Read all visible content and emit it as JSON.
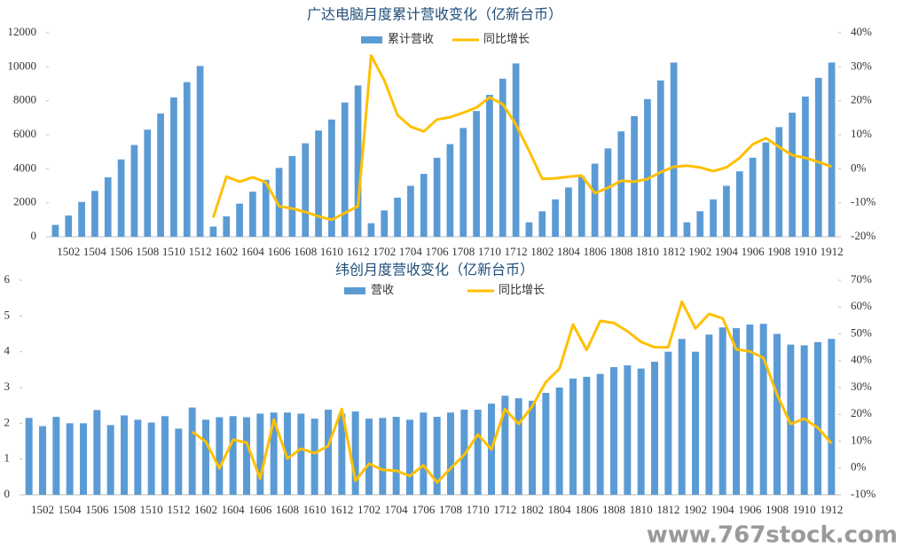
{
  "chart_data": [
    {
      "type": "bar",
      "title": "广达电脑月度累计营收变化（亿新台币）",
      "categories": [
        null,
        "1502",
        null,
        "1504",
        null,
        "1506",
        null,
        "1508",
        null,
        "1510",
        null,
        "1512",
        null,
        "1602",
        null,
        "1604",
        null,
        "1606",
        null,
        "1608",
        null,
        "1610",
        null,
        "1612",
        null,
        "1702",
        null,
        "1704",
        null,
        "1706",
        null,
        "1708",
        null,
        "1710",
        null,
        "1712",
        null,
        "1802",
        null,
        "1804",
        null,
        "1806",
        null,
        "1808",
        null,
        "1810",
        null,
        "1812",
        null,
        "1902",
        null,
        "1904",
        null,
        "1906",
        null,
        "1908",
        null,
        "1910",
        null,
        "1912"
      ],
      "series": [
        {
          "name": "累计营收",
          "type": "bar",
          "color": "#5b9bd5",
          "values": [
            700,
            1250,
            2050,
            2700,
            3500,
            4550,
            5400,
            6300,
            7250,
            8200,
            9100,
            10050,
            600,
            1200,
            1950,
            2650,
            3350,
            4050,
            4750,
            5500,
            6250,
            6900,
            7900,
            8900,
            800,
            1550,
            2300,
            3000,
            3700,
            4650,
            5450,
            6400,
            7400,
            8350,
            9300,
            10200,
            850,
            1500,
            2200,
            2900,
            3550,
            4300,
            5200,
            6200,
            7100,
            8100,
            9200,
            10250,
            850,
            1500,
            2200,
            3000,
            3850,
            4650,
            5550,
            6450,
            7300,
            8250,
            9350,
            10250
          ]
        },
        {
          "name": "同比增长",
          "type": "line",
          "axis": "y2",
          "color": "#ffc000",
          "values": [
            null,
            null,
            null,
            null,
            null,
            null,
            null,
            null,
            null,
            null,
            null,
            null,
            -14.3,
            -2.3,
            -3.8,
            -2.5,
            -4,
            -11,
            -11.7,
            -12.7,
            -14,
            -15,
            -13,
            -11,
            33.3,
            26,
            15.8,
            12.4,
            11,
            14.5,
            15.2,
            16.5,
            18,
            21,
            19,
            13,
            5.3,
            -3,
            -2.8,
            -2.3,
            -2,
            -7.2,
            -5.6,
            -3.5,
            -3.8,
            -3,
            -1,
            0.6,
            0.9,
            0.4,
            -0.7,
            0.4,
            3.2,
            7.2,
            9,
            6.4,
            4,
            3.2,
            2,
            0.6
          ]
        }
      ],
      "ylim": [
        0,
        12000
      ],
      "yticks": [
        0,
        2000,
        4000,
        6000,
        8000,
        10000,
        12000
      ],
      "y2lim": [
        -20,
        40
      ],
      "y2ticks": [
        {
          "value": -20,
          "label": "-20%"
        },
        {
          "value": -10,
          "label": "-10%"
        },
        {
          "value": 0,
          "label": "0%"
        },
        {
          "value": 10,
          "label": "10%"
        },
        {
          "value": 20,
          "label": "20%"
        },
        {
          "value": 30,
          "label": "30%"
        },
        {
          "value": 40,
          "label": "40%"
        }
      ],
      "grid": false,
      "legend": "top"
    },
    {
      "type": "bar",
      "title": "纬创月度营收变化（亿新台币）",
      "categories": [
        null,
        "1502",
        null,
        "1504",
        null,
        "1506",
        null,
        "1508",
        null,
        "1510",
        null,
        "1512",
        null,
        "1602",
        null,
        "1604",
        null,
        "1606",
        null,
        "1608",
        null,
        "1610",
        null,
        "1612",
        null,
        "1702",
        null,
        "1704",
        null,
        "1706",
        null,
        "1708",
        null,
        "1710",
        null,
        "1712",
        null,
        "1802",
        null,
        "1804",
        null,
        "1806",
        null,
        "1808",
        null,
        "1810",
        null,
        "1812",
        null,
        "1902",
        null,
        "1904",
        null,
        "1906",
        null,
        "1908",
        null,
        "1910",
        null,
        "1912"
      ],
      "series": [
        {
          "name": "营收",
          "type": "bar",
          "color": "#5b9bd5",
          "values": [
            2.15,
            1.92,
            2.18,
            2.0,
            2.0,
            2.37,
            1.95,
            2.22,
            2.1,
            2.02,
            2.2,
            1.85,
            2.44,
            2.1,
            2.17,
            2.2,
            2.17,
            2.27,
            2.3,
            2.3,
            2.27,
            2.13,
            2.38,
            2.27,
            2.33,
            2.13,
            2.15,
            2.18,
            2.1,
            2.3,
            2.18,
            2.3,
            2.38,
            2.38,
            2.55,
            2.77,
            2.7,
            2.63,
            2.85,
            3.0,
            3.25,
            3.3,
            3.38,
            3.57,
            3.62,
            3.53,
            3.72,
            4.0,
            4.36,
            4.0,
            4.48,
            4.68,
            4.66,
            4.76,
            4.78,
            4.5,
            4.2,
            4.18,
            4.27,
            4.36
          ]
        },
        {
          "name": "同比增长",
          "type": "line",
          "axis": "y2",
          "color": "#ffc000",
          "values": [
            null,
            null,
            null,
            null,
            null,
            null,
            null,
            null,
            null,
            null,
            null,
            null,
            13.5,
            9.8,
            -0.1,
            10.5,
            9.5,
            -4,
            18,
            3.5,
            7.2,
            5.5,
            8.2,
            22,
            -4.7,
            1.6,
            -0.7,
            -1,
            -3,
            1,
            -5.4,
            -0.1,
            4.9,
            12.5,
            6.9,
            22,
            16.4,
            23,
            32,
            37,
            53.5,
            44,
            54.8,
            54.1,
            51,
            47,
            45,
            45,
            62,
            52,
            57.4,
            55.8,
            44.2,
            43.5,
            41,
            27.4,
            16.4,
            18.4,
            15,
            9.2
          ]
        }
      ],
      "ylim": [
        0,
        6
      ],
      "yticks": [
        0,
        1,
        2,
        3,
        4,
        5,
        6
      ],
      "y2lim": [
        -10,
        70
      ],
      "y2ticks": [
        {
          "value": -10,
          "label": "-10%"
        },
        {
          "value": 0,
          "label": "0%"
        },
        {
          "value": 10,
          "label": "10%"
        },
        {
          "value": 20,
          "label": "20%"
        },
        {
          "value": 30,
          "label": "30%"
        },
        {
          "value": 40,
          "label": "40%"
        },
        {
          "value": 50,
          "label": "50%"
        },
        {
          "value": 60,
          "label": "60%"
        },
        {
          "value": 70,
          "label": "70%"
        }
      ],
      "grid": false,
      "legend": "top"
    }
  ],
  "watermark": "www.767stock.com"
}
